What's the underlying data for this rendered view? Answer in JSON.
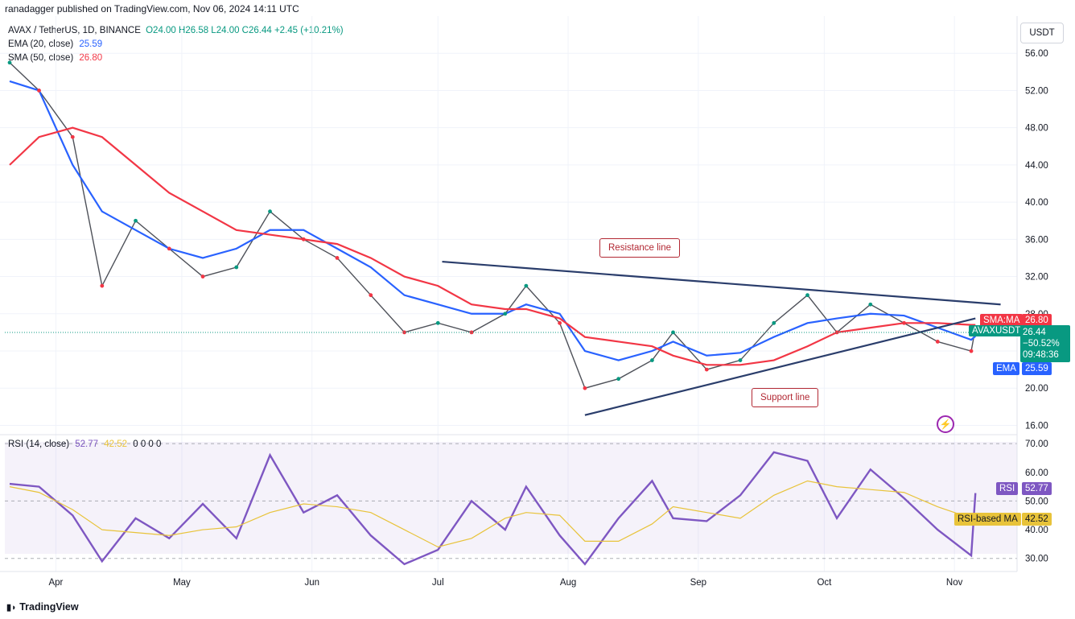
{
  "header": {
    "published": "ranadagger published on TradingView.com, Nov 06, 2024 14:11 UTC"
  },
  "currency_button": "USDT",
  "legend": {
    "symbol_line": "AVAX / TetherUS, 1D, BINANCE",
    "ohlc": "O24.00  H26.58  L24.00  C26.44  +2.45 (+10.21%)",
    "ema_label": "EMA (20, close)",
    "ema_value": "25.59",
    "sma_label": "SMA (50, close)",
    "sma_value": "26.80"
  },
  "rsi_legend": {
    "label": "RSI (14, close)",
    "value": "52.77",
    "ma_value": "42.52",
    "zeros": "0 0 0 0"
  },
  "annotations": {
    "resistance": "Resistance line",
    "support": "Support line"
  },
  "price_tags": {
    "sma_label": "SMA:MA",
    "sma_value": "26.80",
    "symbol": "AVAXUSDT",
    "price": "26.44",
    "change": "−50.52%",
    "countdown": "09:48:36",
    "ema_label": "EMA",
    "ema_value": "25.59",
    "rsi_label": "RSI",
    "rsi_value": "52.77",
    "rsi_ma_label": "RSI-based MA",
    "rsi_ma_value": "42.52"
  },
  "footer": {
    "logo_text": "TradingView"
  },
  "colors": {
    "up": "#089981",
    "down": "#f23645",
    "ema": "#2962ff",
    "sma": "#f23645",
    "rsi": "#7e57c2",
    "rsi_ma": "#e8c33a",
    "trendline": "#2a3d6b"
  },
  "chart_data": [
    {
      "type": "line",
      "title": "AVAX / TetherUS, 1D, BINANCE",
      "x_labels": [
        "Apr",
        "May",
        "Jun",
        "Jul",
        "Aug",
        "Sep",
        "Oct",
        "Nov"
      ],
      "y_ticks": [
        16,
        20,
        24,
        28,
        32,
        36,
        40,
        44,
        48,
        52,
        56
      ],
      "y_tick_labels": [
        "16.00",
        "20.00",
        "24.00",
        "28.00",
        "32.00",
        "36.00",
        "40.00",
        "44.00",
        "48.00",
        "52.00",
        "56.00"
      ],
      "ylim": [
        15,
        60
      ],
      "x": [
        "2024-03-21",
        "2024-03-28",
        "2024-04-05",
        "2024-04-12",
        "2024-04-20",
        "2024-04-28",
        "2024-05-06",
        "2024-05-14",
        "2024-05-22",
        "2024-05-30",
        "2024-06-07",
        "2024-06-15",
        "2024-06-23",
        "2024-07-01",
        "2024-07-09",
        "2024-07-17",
        "2024-07-22",
        "2024-07-30",
        "2024-08-05",
        "2024-08-13",
        "2024-08-21",
        "2024-08-26",
        "2024-09-03",
        "2024-09-11",
        "2024-09-19",
        "2024-09-27",
        "2024-10-04",
        "2024-10-12",
        "2024-10-20",
        "2024-10-28",
        "2024-11-05",
        "2024-11-06"
      ],
      "series": [
        {
          "name": "AVAXUSDT",
          "values": [
            55,
            52,
            47,
            31,
            38,
            35,
            32,
            33,
            39,
            36,
            34,
            30,
            26,
            27,
            26,
            28,
            31,
            27,
            20,
            21,
            23,
            26,
            22,
            23,
            27,
            30,
            26,
            29,
            27,
            25,
            23.99,
            26.44
          ]
        },
        {
          "name": "EMA (20, close)",
          "values": [
            53,
            52,
            44,
            39,
            37,
            35,
            34,
            35,
            37,
            37,
            35,
            33,
            30,
            29,
            28,
            28,
            29,
            28,
            24,
            23,
            24,
            25,
            23.5,
            23.8,
            25.5,
            27,
            27.5,
            28,
            27.8,
            26.5,
            25.2,
            25.59
          ]
        },
        {
          "name": "SMA (50, close)",
          "values": [
            44,
            47,
            48,
            47,
            44,
            41,
            39,
            37,
            36.5,
            36,
            35.5,
            34,
            32,
            31,
            29,
            28.5,
            28.5,
            27.5,
            25.5,
            25,
            24.5,
            23.5,
            22.5,
            22.5,
            23,
            24.5,
            26,
            26.5,
            27,
            27,
            26.8,
            26.8
          ]
        }
      ],
      "trendlines": {
        "resistance": {
          "start": [
            "2024-07-02",
            33.6
          ],
          "end": [
            "2024-11-12",
            29.0
          ]
        },
        "support": {
          "start": [
            "2024-08-05",
            17.1
          ],
          "end": [
            "2024-11-06",
            27.5
          ]
        }
      }
    },
    {
      "type": "line",
      "title": "RSI (14, close)",
      "y_ticks": [
        30,
        40,
        50,
        60,
        70
      ],
      "y_tick_labels": [
        "30.00",
        "40.00",
        "50.00",
        "60.00",
        "70.00"
      ],
      "ylim": [
        26,
        72
      ],
      "bands": {
        "upper": 70,
        "middle": 50,
        "lower": 30
      },
      "x": [
        "2024-03-21",
        "2024-03-28",
        "2024-04-05",
        "2024-04-12",
        "2024-04-20",
        "2024-04-28",
        "2024-05-06",
        "2024-05-14",
        "2024-05-22",
        "2024-05-30",
        "2024-06-07",
        "2024-06-15",
        "2024-06-23",
        "2024-07-01",
        "2024-07-09",
        "2024-07-17",
        "2024-07-22",
        "2024-07-30",
        "2024-08-05",
        "2024-08-13",
        "2024-08-21",
        "2024-08-26",
        "2024-09-03",
        "2024-09-11",
        "2024-09-19",
        "2024-09-27",
        "2024-10-04",
        "2024-10-12",
        "2024-10-20",
        "2024-10-28",
        "2024-11-05",
        "2024-11-06"
      ],
      "series": [
        {
          "name": "RSI",
          "values": [
            56,
            55,
            45,
            29,
            44,
            37,
            49,
            37,
            66,
            46,
            52,
            38,
            28,
            33,
            50,
            40,
            55,
            38,
            28,
            44,
            57,
            44,
            43,
            52,
            67,
            64,
            44,
            61,
            51,
            40,
            31,
            52.77
          ]
        },
        {
          "name": "RSI-based MA",
          "values": [
            55,
            53,
            47,
            40,
            39,
            38,
            40,
            41,
            46,
            49,
            48,
            46,
            40,
            34,
            37,
            44,
            46,
            45,
            36,
            36,
            42,
            48,
            46,
            44,
            52,
            57,
            55,
            54,
            53,
            48,
            44,
            42.52
          ]
        }
      ]
    }
  ]
}
